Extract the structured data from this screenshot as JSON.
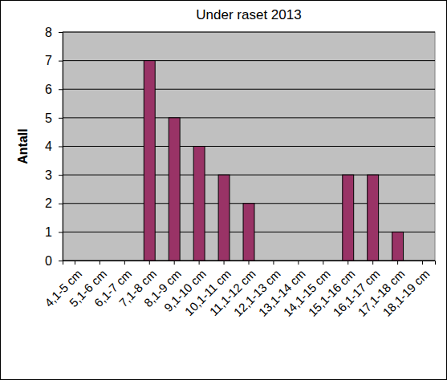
{
  "chart_data": {
    "type": "bar",
    "title": "Under raset 2013",
    "ylabel": "Antall",
    "categories": [
      "4,1-5 cm",
      "5,1-6 cm",
      "6,1-7 cm",
      "7,1-8 cm",
      "8,1-9 cm",
      "9,1-10 cm",
      "10,1-11 cm",
      "11,1-12 cm",
      "12,1-13 cm",
      "13,1-14 cm",
      "14,1-15 cm",
      "15,1-16 cm",
      "16,1-17 cm",
      "17,1-18 cm",
      "18,1-19 cm"
    ],
    "values": [
      0,
      0,
      0,
      7,
      5,
      4,
      3,
      2,
      0,
      0,
      0,
      3,
      3,
      1,
      0
    ],
    "color": "#993366",
    "ylim": [
      0,
      8
    ],
    "yticks": [
      0,
      1,
      2,
      3,
      4,
      5,
      6,
      7,
      8
    ],
    "grid": true
  }
}
